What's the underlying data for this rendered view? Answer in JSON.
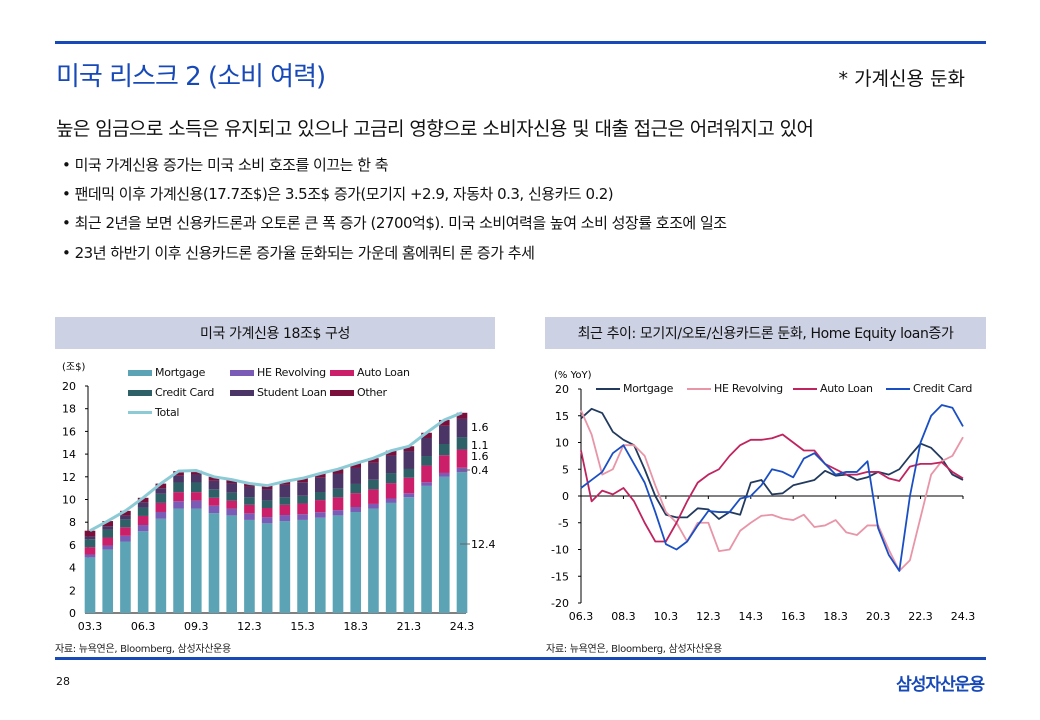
{
  "header": {
    "title": "미국 리스크 2 (소비 여력)",
    "tag": "* 가계신용 둔화",
    "subtitle": "높은 임금으로 소득은 유지되고 있으나 고금리 영향으로 소비자신용 및 대출 접근은 어려워지고 있어"
  },
  "bullets": [
    "• 미국 가계신용 증가는 미국 소비 호조를 이끄는 한 축",
    "• 팬데믹 이후 가계신용(17.7조$)은  3.5조$ 증가(모기지  +2.9, 자동차 0.3, 신용카드  0.2)",
    "• 최근 2년을 보면 신용카드론과  오토론 큰 폭 증가 (2700억$).  미국 소비여력을 높여 소비 성장률 호조에 일조",
    "• 23년 하반기 이후 신용카드론 증가율 둔화되는 가운데 홈에쿼티  론 증가 추세"
  ],
  "footer": {
    "page": "28",
    "logo": "삼성자산운용"
  },
  "colors": {
    "accent": "#1749b8",
    "header_bg": "#cdd1e4"
  },
  "chart_data": [
    {
      "type": "bar",
      "stacked": true,
      "title": "미국 가계신용 18조$ 구성",
      "ylabel": "(조$)",
      "ylim": [
        0,
        20
      ],
      "yticks": [
        0,
        2,
        4,
        6,
        8,
        10,
        12,
        14,
        16,
        18,
        20
      ],
      "xticks": [
        "03.3",
        "06.3",
        "09.3",
        "12.3",
        "15.3",
        "18.3",
        "21.3",
        "24.3"
      ],
      "categories": [
        "03.3",
        "04.3",
        "05.3",
        "06.3",
        "07.3",
        "08.3",
        "09.3",
        "10.3",
        "11.3",
        "12.3",
        "13.3",
        "14.3",
        "15.3",
        "16.3",
        "17.3",
        "18.3",
        "19.3",
        "20.3",
        "21.3",
        "22.3",
        "23.3",
        "24.3"
      ],
      "series": [
        {
          "name": "Mortgage",
          "color": "#5ba3b5",
          "values": [
            4.9,
            5.6,
            6.3,
            7.2,
            8.3,
            9.2,
            9.2,
            8.8,
            8.6,
            8.2,
            7.9,
            8.1,
            8.2,
            8.4,
            8.6,
            8.9,
            9.2,
            9.7,
            10.2,
            11.2,
            12.0,
            12.4
          ]
        },
        {
          "name": "HE Revolving",
          "color": "#7a5bb5",
          "values": [
            0.25,
            0.35,
            0.5,
            0.55,
            0.6,
            0.65,
            0.7,
            0.65,
            0.6,
            0.58,
            0.55,
            0.53,
            0.5,
            0.48,
            0.46,
            0.44,
            0.41,
            0.39,
            0.35,
            0.32,
            0.34,
            0.4
          ]
        },
        {
          "name": "Auto Loan",
          "color": "#cc1f6a",
          "values": [
            0.65,
            0.7,
            0.75,
            0.8,
            0.8,
            0.8,
            0.75,
            0.7,
            0.7,
            0.75,
            0.8,
            0.9,
            0.95,
            1.07,
            1.13,
            1.22,
            1.28,
            1.35,
            1.37,
            1.47,
            1.56,
            1.6
          ]
        },
        {
          "name": "Credit Card",
          "color": "#2e6068",
          "values": [
            0.7,
            0.7,
            0.7,
            0.75,
            0.8,
            0.85,
            0.85,
            0.75,
            0.7,
            0.68,
            0.67,
            0.66,
            0.68,
            0.71,
            0.76,
            0.81,
            0.85,
            0.89,
            0.77,
            0.84,
            0.99,
            1.1
          ]
        },
        {
          "name": "Student Loan",
          "color": "#4b3566",
          "values": [
            0.25,
            0.3,
            0.35,
            0.45,
            0.5,
            0.6,
            0.7,
            0.75,
            0.85,
            0.9,
            1.0,
            1.1,
            1.19,
            1.26,
            1.34,
            1.41,
            1.49,
            1.54,
            1.58,
            1.59,
            1.6,
            1.6
          ]
        },
        {
          "name": "Other",
          "color": "#7a0f3c",
          "values": [
            0.5,
            0.45,
            0.4,
            0.4,
            0.4,
            0.4,
            0.35,
            0.35,
            0.3,
            0.3,
            0.3,
            0.3,
            0.35,
            0.37,
            0.38,
            0.4,
            0.41,
            0.43,
            0.42,
            0.46,
            0.52,
            0.54
          ]
        }
      ],
      "total": {
        "name": "Total",
        "color": "#8ccbd6"
      },
      "annotations": [
        "1.6",
        "1.1",
        "1.6",
        "0.4",
        "12.4"
      ]
    },
    {
      "type": "line",
      "title": "최근 추이: 모기지/오토/신용카드론 둔화, Home Equity loan증가",
      "ylabel": "(% YoY)",
      "ylim": [
        -20,
        20
      ],
      "yticks": [
        -20,
        -15,
        -10,
        -5,
        0,
        5,
        10,
        15,
        20
      ],
      "xticks": [
        "06.3",
        "08.3",
        "10.3",
        "12.3",
        "14.3",
        "16.3",
        "18.3",
        "20.3",
        "22.3",
        "24.3"
      ],
      "x": [
        "06.3",
        "06.9",
        "07.3",
        "07.9",
        "08.3",
        "08.9",
        "09.3",
        "09.9",
        "10.3",
        "10.9",
        "11.3",
        "11.9",
        "12.3",
        "12.9",
        "13.3",
        "13.9",
        "14.3",
        "14.9",
        "15.3",
        "15.9",
        "16.3",
        "16.9",
        "17.3",
        "17.9",
        "18.3",
        "18.9",
        "19.3",
        "19.9",
        "20.3",
        "20.9",
        "21.3",
        "21.9",
        "22.3",
        "22.9",
        "23.3",
        "23.9",
        "24.3"
      ],
      "series": [
        {
          "name": "Mortgage",
          "color": "#223a5e",
          "values": [
            14.5,
            16.3,
            15.5,
            12,
            10.5,
            9.5,
            5,
            0,
            -3.5,
            -4,
            -4,
            -2.3,
            -2.5,
            -4.3,
            -3,
            -3.5,
            2.5,
            3,
            0.3,
            0.5,
            2,
            2.5,
            3,
            4.7,
            3.8,
            4,
            3,
            3.5,
            4.5,
            4,
            5,
            7.5,
            9.8,
            9,
            7,
            4,
            3
          ]
        },
        {
          "name": "HE Revolving",
          "color": "#e895a8",
          "values": [
            16,
            11.5,
            4,
            5,
            9.5,
            9.5,
            7.5,
            2,
            -3,
            -5,
            -8.5,
            -5,
            -5,
            -10.3,
            -10,
            -6.5,
            -5,
            -3.7,
            -3.5,
            -4.2,
            -4.5,
            -3.5,
            -5.8,
            -5.5,
            -4.5,
            -6.8,
            -7.3,
            -5.5,
            -5.5,
            -10,
            -14,
            -12,
            -4,
            4,
            6.5,
            7.5,
            11
          ]
        },
        {
          "name": "Auto Loan",
          "color": "#c0245f",
          "values": [
            8.5,
            -1,
            1,
            0.3,
            1.5,
            -1,
            -5,
            -8.5,
            -8.5,
            -5,
            -1,
            2.5,
            4,
            5,
            7.5,
            9.5,
            10.5,
            10.5,
            10.8,
            11.5,
            10,
            8.5,
            8.5,
            6,
            5,
            4,
            4,
            4.5,
            4.5,
            3.3,
            2.8,
            5.5,
            6,
            6,
            6.3,
            4.5,
            3.3
          ]
        },
        {
          "name": "Credit Card",
          "color": "#1a4fc4",
          "values": [
            1.5,
            3,
            4.5,
            8,
            9.5,
            6,
            2.5,
            -3,
            -9,
            -10,
            -8.5,
            -5.5,
            -2.8,
            -3,
            -3,
            -0.5,
            0,
            2,
            5,
            4.5,
            3.5,
            7,
            8,
            6,
            4,
            4.5,
            4.5,
            6.5,
            -6,
            -11,
            -14,
            0,
            10,
            15,
            17,
            16.5,
            13
          ]
        }
      ]
    }
  ],
  "sources": [
    "자료: 뉴욕연은, Bloomberg, 삼성자산운용",
    "자료: 뉴욕연은, Bloomberg, 삼성자산운용"
  ]
}
